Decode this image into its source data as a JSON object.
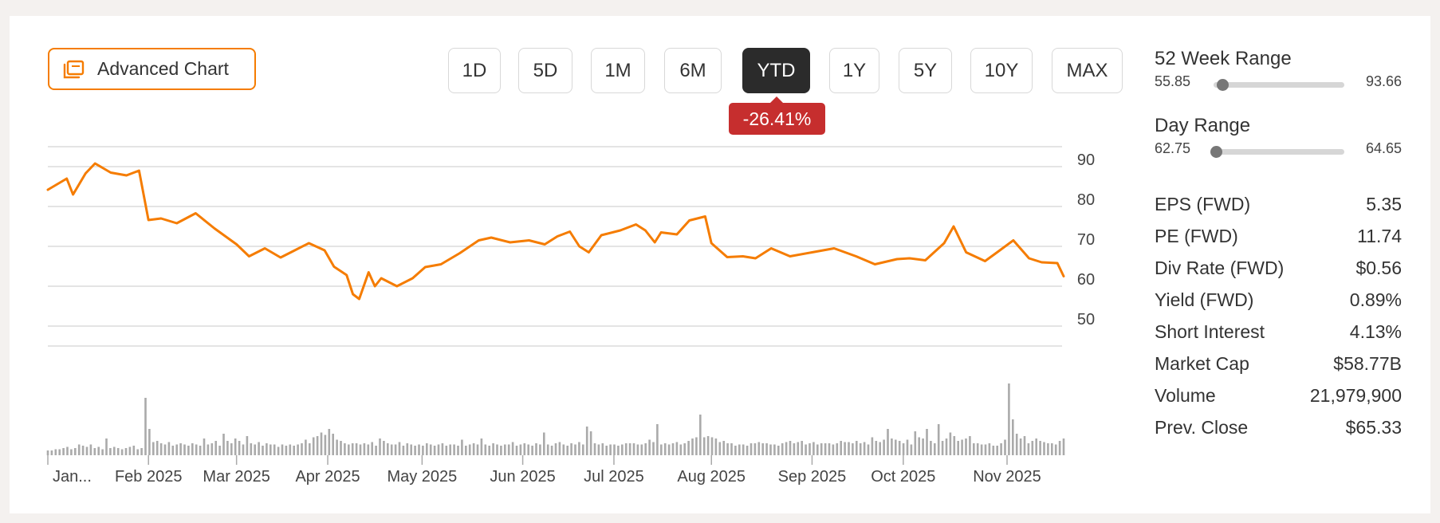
{
  "toolbar": {
    "advanced_chart_label": "Advanced Chart",
    "icon": "chart-window-icon"
  },
  "ranges": [
    {
      "label": "1D",
      "active": false
    },
    {
      "label": "5D",
      "active": false
    },
    {
      "label": "1M",
      "active": false
    },
    {
      "label": "6M",
      "active": false
    },
    {
      "label": "YTD",
      "active": true
    },
    {
      "label": "1Y",
      "active": false
    },
    {
      "label": "5Y",
      "active": false
    },
    {
      "label": "10Y",
      "active": false
    },
    {
      "label": "MAX",
      "active": false
    }
  ],
  "change": {
    "text": "-26.41%",
    "color": "#c62e2e"
  },
  "colors": {
    "accent": "#f57c00",
    "line": "#f57c00",
    "volume": "#aaaaaa"
  },
  "stats": {
    "week52": {
      "title": "52 Week Range",
      "low": "55.85",
      "high": "93.66",
      "position": 0.07
    },
    "day": {
      "title": "Day Range",
      "low": "62.75",
      "high": "64.65",
      "position": 0.02
    },
    "items": [
      {
        "label": "EPS (FWD)",
        "value": "5.35"
      },
      {
        "label": "PE (FWD)",
        "value": "11.74"
      },
      {
        "label": "Div Rate (FWD)",
        "value": "$0.56"
      },
      {
        "label": "Yield (FWD)",
        "value": "0.89%"
      },
      {
        "label": "Short Interest",
        "value": "4.13%"
      },
      {
        "label": "Market Cap",
        "value": "$58.77B"
      },
      {
        "label": "Volume",
        "value": "21,979,900"
      },
      {
        "label": "Prev. Close",
        "value": "$65.33"
      }
    ]
  },
  "chart_data": {
    "type": "line",
    "title": "",
    "xlabel": "",
    "ylabel": "",
    "ylim": [
      45,
      95
    ],
    "yticks": [
      90,
      80,
      70,
      60,
      50
    ],
    "xticks": [
      {
        "label": "Jan...",
        "date": "2025-01-02"
      },
      {
        "label": "Feb 2025",
        "date": "2025-02-03"
      },
      {
        "label": "Mar 2025",
        "date": "2025-03-03"
      },
      {
        "label": "Apr 2025",
        "date": "2025-04-01"
      },
      {
        "label": "May 2025",
        "date": "2025-05-01"
      },
      {
        "label": "Jun 2025",
        "date": "2025-06-02"
      },
      {
        "label": "Jul 2025",
        "date": "2025-07-01"
      },
      {
        "label": "Aug 2025",
        "date": "2025-08-01"
      },
      {
        "label": "Sep 2025",
        "date": "2025-09-02"
      },
      {
        "label": "Oct 2025",
        "date": "2025-10-01"
      },
      {
        "label": "Nov 2025",
        "date": "2025-11-03"
      }
    ],
    "grid": true,
    "series": [
      {
        "values": [
          {
            "date": "2025-01-02",
            "price": 84.2
          },
          {
            "date": "2025-01-08",
            "price": 87.0
          },
          {
            "date": "2025-01-10",
            "price": 83.0
          },
          {
            "date": "2025-01-14",
            "price": 88.3
          },
          {
            "date": "2025-01-17",
            "price": 90.8
          },
          {
            "date": "2025-01-22",
            "price": 88.5
          },
          {
            "date": "2025-01-27",
            "price": 87.8
          },
          {
            "date": "2025-01-31",
            "price": 89.0
          },
          {
            "date": "2025-02-03",
            "price": 76.6
          },
          {
            "date": "2025-02-07",
            "price": 77.0
          },
          {
            "date": "2025-02-12",
            "price": 75.8
          },
          {
            "date": "2025-02-18",
            "price": 78.3
          },
          {
            "date": "2025-02-24",
            "price": 74.5
          },
          {
            "date": "2025-03-03",
            "price": 70.5
          },
          {
            "date": "2025-03-07",
            "price": 67.5
          },
          {
            "date": "2025-03-12",
            "price": 69.5
          },
          {
            "date": "2025-03-17",
            "price": 67.2
          },
          {
            "date": "2025-03-21",
            "price": 68.8
          },
          {
            "date": "2025-03-26",
            "price": 70.8
          },
          {
            "date": "2025-03-31",
            "price": 69.0
          },
          {
            "date": "2025-04-03",
            "price": 64.9
          },
          {
            "date": "2025-04-07",
            "price": 62.8
          },
          {
            "date": "2025-04-09",
            "price": 58.0
          },
          {
            "date": "2025-04-11",
            "price": 56.8
          },
          {
            "date": "2025-04-14",
            "price": 63.5
          },
          {
            "date": "2025-04-16",
            "price": 60.0
          },
          {
            "date": "2025-04-18",
            "price": 62.0
          },
          {
            "date": "2025-04-23",
            "price": 60.0
          },
          {
            "date": "2025-04-28",
            "price": 62.0
          },
          {
            "date": "2025-05-02",
            "price": 64.8
          },
          {
            "date": "2025-05-07",
            "price": 65.5
          },
          {
            "date": "2025-05-13",
            "price": 68.3
          },
          {
            "date": "2025-05-19",
            "price": 71.5
          },
          {
            "date": "2025-05-23",
            "price": 72.2
          },
          {
            "date": "2025-05-29",
            "price": 71.0
          },
          {
            "date": "2025-06-04",
            "price": 71.5
          },
          {
            "date": "2025-06-09",
            "price": 70.5
          },
          {
            "date": "2025-06-13",
            "price": 72.5
          },
          {
            "date": "2025-06-17",
            "price": 73.7
          },
          {
            "date": "2025-06-20",
            "price": 70.0
          },
          {
            "date": "2025-06-23",
            "price": 68.5
          },
          {
            "date": "2025-06-27",
            "price": 72.8
          },
          {
            "date": "2025-07-03",
            "price": 74.0
          },
          {
            "date": "2025-07-08",
            "price": 75.5
          },
          {
            "date": "2025-07-11",
            "price": 74.0
          },
          {
            "date": "2025-07-14",
            "price": 71.0
          },
          {
            "date": "2025-07-16",
            "price": 73.5
          },
          {
            "date": "2025-07-21",
            "price": 73.0
          },
          {
            "date": "2025-07-25",
            "price": 76.5
          },
          {
            "date": "2025-07-30",
            "price": 77.5
          },
          {
            "date": "2025-08-01",
            "price": 70.8
          },
          {
            "date": "2025-08-06",
            "price": 67.3
          },
          {
            "date": "2025-08-11",
            "price": 67.5
          },
          {
            "date": "2025-08-15",
            "price": 67.0
          },
          {
            "date": "2025-08-20",
            "price": 69.5
          },
          {
            "date": "2025-08-26",
            "price": 67.5
          },
          {
            "date": "2025-09-02",
            "price": 68.5
          },
          {
            "date": "2025-09-09",
            "price": 69.5
          },
          {
            "date": "2025-09-16",
            "price": 67.5
          },
          {
            "date": "2025-09-22",
            "price": 65.5
          },
          {
            "date": "2025-09-29",
            "price": 66.8
          },
          {
            "date": "2025-10-03",
            "price": 67.0
          },
          {
            "date": "2025-10-08",
            "price": 66.5
          },
          {
            "date": "2025-10-14",
            "price": 70.8
          },
          {
            "date": "2025-10-17",
            "price": 75.0
          },
          {
            "date": "2025-10-21",
            "price": 68.5
          },
          {
            "date": "2025-10-27",
            "price": 66.3
          },
          {
            "date": "2025-10-31",
            "price": 68.6
          },
          {
            "date": "2025-11-05",
            "price": 71.5
          },
          {
            "date": "2025-11-10",
            "price": 67.0
          },
          {
            "date": "2025-11-14",
            "price": 66.0
          },
          {
            "date": "2025-11-19",
            "price": 65.8
          },
          {
            "date": "2025-11-21",
            "price": 62.5
          }
        ]
      }
    ],
    "volume": {
      "bars": [
        4,
        4,
        5,
        5,
        6,
        7,
        5,
        6,
        9,
        8,
        7,
        9,
        6,
        7,
        5,
        14,
        6,
        7,
        6,
        5,
        6,
        7,
        8,
        5,
        6,
        48,
        22,
        11,
        12,
        10,
        9,
        11,
        8,
        9,
        10,
        9,
        8,
        10,
        9,
        8,
        14,
        9,
        10,
        12,
        8,
        18,
        12,
        10,
        14,
        12,
        9,
        16,
        10,
        9,
        11,
        8,
        10,
        9,
        9,
        7,
        9,
        8,
        9,
        8,
        9,
        10,
        13,
        10,
        15,
        16,
        19,
        17,
        22,
        18,
        13,
        12,
        10,
        9,
        10,
        10,
        9,
        10,
        9,
        11,
        8,
        14,
        12,
        10,
        9,
        9,
        11,
        8,
        10,
        9,
        8,
        9,
        8,
        10,
        9,
        8,
        9,
        10,
        8,
        9,
        9,
        8,
        13,
        8,
        9,
        10,
        9,
        14,
        9,
        8,
        10,
        9,
        8,
        9,
        9,
        11,
        8,
        9,
        10,
        9,
        8,
        10,
        9,
        19,
        9,
        8,
        10,
        11,
        9,
        8,
        10,
        9,
        11,
        9,
        24,
        20,
        10,
        9,
        10,
        8,
        9,
        9,
        8,
        9,
        10,
        10,
        10,
        9,
        9,
        10,
        13,
        11,
        26,
        9,
        10,
        9,
        10,
        11,
        9,
        10,
        12,
        14,
        15,
        34,
        15,
        16,
        15,
        14,
        11,
        12,
        10,
        10,
        8,
        9,
        9,
        8,
        10,
        10,
        11,
        10,
        10,
        9,
        9,
        8,
        10,
        11,
        12,
        10,
        11,
        12,
        9,
        10,
        11,
        9,
        10,
        10,
        10,
        9,
        10,
        12,
        11,
        11,
        10,
        12,
        10,
        11,
        9,
        15,
        12,
        11,
        13,
        22,
        14,
        13,
        12,
        10,
        13,
        9,
        20,
        15,
        14,
        22,
        12,
        10,
        26,
        12,
        14,
        19,
        16,
        12,
        13,
        14,
        16,
        10,
        10,
        9,
        9,
        10,
        8,
        8,
        10,
        13,
        60,
        30,
        18,
        14,
        16,
        10,
        12,
        14,
        12,
        11,
        10,
        10,
        9,
        12,
        14
      ]
    }
  }
}
